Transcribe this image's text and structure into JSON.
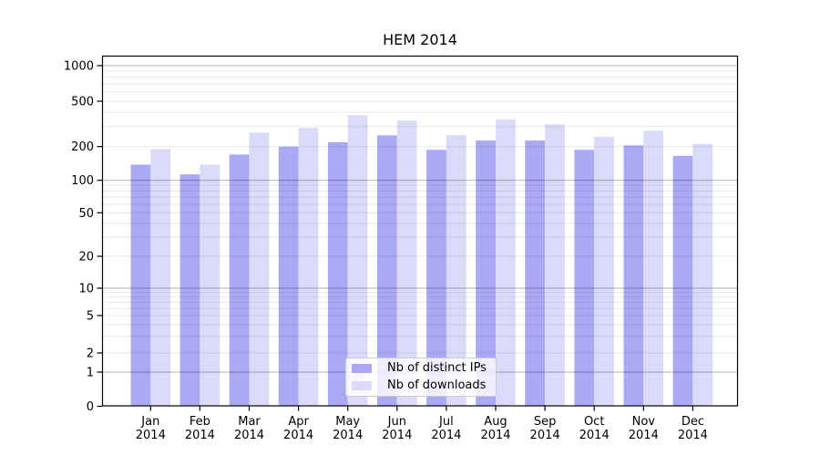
{
  "chart_data": {
    "type": "bar",
    "title": "HEM 2014",
    "categories": [
      "Jan",
      "Feb",
      "Mar",
      "Apr",
      "May",
      "Jun",
      "Jul",
      "Aug",
      "Sep",
      "Oct",
      "Nov",
      "Dec"
    ],
    "category_year": "2014",
    "series": [
      {
        "name": "Nb of distinct IPs",
        "color": "#a9a9f4",
        "values": [
          138,
          113,
          170,
          200,
          218,
          251,
          187,
          226,
          226,
          187,
          205,
          165
        ]
      },
      {
        "name": "Nb of downloads",
        "color": "#dbdbf9",
        "values": [
          190,
          138,
          265,
          292,
          377,
          338,
          252,
          345,
          313,
          243,
          275,
          211
        ]
      }
    ],
    "yscale": "symlog",
    "yticks": [
      0,
      1,
      2,
      5,
      10,
      20,
      50,
      100,
      200,
      500,
      1000
    ],
    "ylim": [
      0,
      1200
    ],
    "xlabel": "",
    "ylabel": "",
    "grid": "on",
    "legend_position": "lower-center-inside",
    "axis_color": "#000000",
    "major_grid_color": "#b3b3b3",
    "minor_grid_color": "#e8e8e8"
  }
}
